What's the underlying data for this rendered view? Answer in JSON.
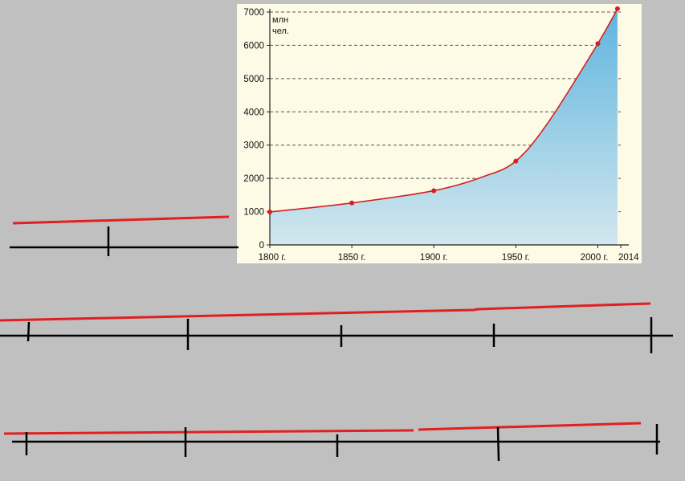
{
  "chart_data": {
    "type": "area",
    "unit_label": [
      "млн",
      "чел."
    ],
    "x_tick_labels": [
      "1800 г.",
      "1850 г.",
      "1900 г.",
      "1950 г.",
      "2000 г.",
      "2014"
    ],
    "x_ticks": [
      1800,
      1850,
      1900,
      1950,
      2000,
      2014
    ],
    "y_ticks": [
      0,
      1000,
      2000,
      3000,
      4000,
      5000,
      6000,
      7000
    ],
    "xlim": [
      1800,
      2014
    ],
    "ylim": [
      0,
      7000
    ],
    "grid": "horizontal dashed",
    "series": [
      {
        "x": [
          1800,
          1850,
          1900,
          1930,
          1950,
          1970,
          2000,
          2012
        ],
        "y": [
          990,
          1260,
          1630,
          2050,
          2520,
          3700,
          6050,
          7100
        ],
        "markers_x": [
          1800,
          1850,
          1900,
          1950,
          2000,
          2012
        ],
        "markers_y": [
          990,
          1260,
          1630,
          2520,
          6050,
          7100
        ]
      }
    ],
    "colors": {
      "line": "#d42020",
      "fill_top": "#5fb4de",
      "fill_bottom": "#d2e7ee",
      "background": "#fdfae6"
    }
  }
}
